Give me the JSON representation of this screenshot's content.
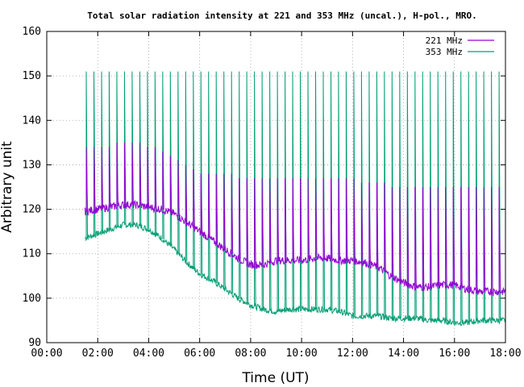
{
  "chart_data": {
    "type": "line",
    "title": "Total solar radiation intensity at 221 and 353 MHz (uncal.), H-pol., MRO.",
    "xlabel": "Time (UT)",
    "ylabel": "Arbitrary unit",
    "xlim": [
      "00:00",
      "18:00"
    ],
    "ylim": [
      90,
      160
    ],
    "x_ticks": [
      "00:00",
      "02:00",
      "04:00",
      "06:00",
      "08:00",
      "10:00",
      "12:00",
      "14:00",
      "16:00",
      "18:00"
    ],
    "y_ticks": [
      "90",
      "100",
      "110",
      "120",
      "130",
      "140",
      "150",
      "160"
    ],
    "grid": true,
    "legend_position": "top-right",
    "series": [
      {
        "name": "221 MHz",
        "color": "#9400d3",
        "x": [
          "01:30",
          "02:00",
          "02:30",
          "03:00",
          "03:30",
          "04:00",
          "04:30",
          "05:00",
          "05:30",
          "06:00",
          "06:30",
          "07:00",
          "07:30",
          "08:00",
          "08:30",
          "09:00",
          "09:30",
          "10:00",
          "10:30",
          "11:00",
          "11:30",
          "12:00",
          "12:30",
          "13:00",
          "13:30",
          "14:00",
          "14:30",
          "15:00",
          "15:30",
          "16:00",
          "16:30",
          "17:00",
          "17:30",
          "18:00"
        ],
        "y": [
          119.5,
          120,
          120.5,
          121,
          121,
          120.5,
          120,
          119,
          117,
          115,
          113,
          111,
          109,
          107.5,
          107.5,
          108.5,
          108.5,
          108.5,
          109,
          109,
          108.5,
          108.5,
          108,
          107,
          105,
          103.5,
          102.5,
          102.5,
          103,
          103,
          102,
          101.5,
          101.5,
          101.5
        ]
      },
      {
        "name": "353 MHz",
        "color": "#009e73",
        "x": [
          "01:30",
          "02:00",
          "02:30",
          "03:00",
          "03:30",
          "04:00",
          "04:30",
          "05:00",
          "05:30",
          "06:00",
          "06:30",
          "07:00",
          "07:30",
          "08:00",
          "08:30",
          "09:00",
          "09:30",
          "10:00",
          "10:30",
          "11:00",
          "11:30",
          "12:00",
          "12:30",
          "13:00",
          "13:30",
          "14:00",
          "14:30",
          "15:00",
          "15:30",
          "16:00",
          "16:30",
          "17:00",
          "17:30",
          "18:00"
        ],
        "y": [
          113.5,
          114.5,
          115.5,
          116.5,
          116.5,
          115.5,
          113.5,
          111,
          108,
          105.5,
          104,
          102,
          100,
          98.5,
          97.5,
          97,
          97.5,
          97.5,
          97.5,
          97.5,
          97,
          96,
          96,
          96,
          95.5,
          95.5,
          95.5,
          95,
          95,
          94.5,
          94.5,
          95,
          95,
          95
        ]
      }
    ],
    "spikes": {
      "note_221": "periodic calibration spikes to about 125-135",
      "spike_times_hours": [
        1.55,
        1.85,
        2.15,
        2.45,
        2.75,
        3.05,
        3.35,
        3.65,
        3.95,
        4.25,
        4.55,
        4.85,
        5.15,
        5.45,
        5.75,
        6.05,
        6.35,
        6.65,
        6.95,
        7.25,
        7.55,
        7.85,
        8.15,
        8.45,
        8.75,
        9.05,
        9.35,
        9.65,
        9.95,
        10.25,
        10.55,
        10.85,
        11.15,
        11.45,
        11.75,
        12.05,
        12.35,
        12.65,
        12.95,
        13.25,
        13.55,
        13.85,
        14.15,
        14.45,
        14.75,
        15.05,
        15.35,
        15.65,
        15.95,
        16.25,
        16.55,
        16.85,
        17.15,
        17.45,
        17.75
      ],
      "spike_peak_353": 151,
      "spike_peak_221": [
        134,
        134,
        134,
        134,
        135,
        135,
        135,
        135,
        134,
        134,
        133,
        132,
        131,
        130,
        129,
        128,
        128,
        128,
        128,
        128,
        127,
        127,
        127,
        127,
        127,
        127,
        127,
        127,
        127,
        127,
        127,
        127,
        127,
        127,
        127,
        127,
        126,
        126,
        126,
        126,
        125,
        125,
        125,
        125,
        125,
        125,
        125,
        125,
        125,
        125,
        125,
        125,
        125,
        125,
        125
      ]
    }
  }
}
